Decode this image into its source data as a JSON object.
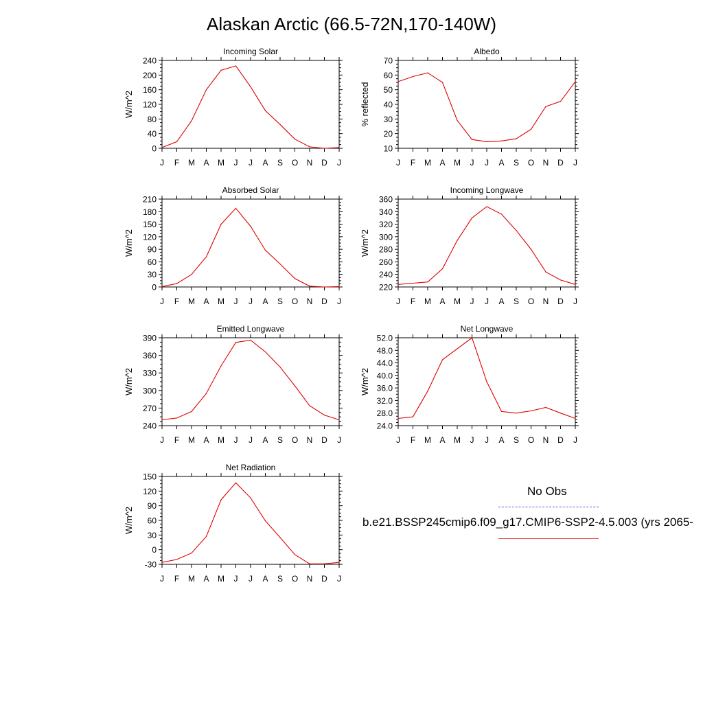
{
  "page_title": "Alaskan Arctic (66.5-72N,170-140W)",
  "legend": {
    "obs_label": "No Obs",
    "model_label": "b.e21.BSSP245cmip6.f09_g17.CMIP6-SSP2-4.5.003 (yrs 2065-",
    "obs_color": "#4a5bd8",
    "model_color": "#e00000"
  },
  "chart_data": [
    {
      "type": "line",
      "title": "Incoming Solar",
      "ylabel": "W/m^2",
      "categories": [
        "J",
        "F",
        "M",
        "A",
        "M",
        "J",
        "J",
        "A",
        "S",
        "O",
        "N",
        "D",
        "J"
      ],
      "ylim": [
        0,
        240
      ],
      "yticks": [
        "0",
        "40",
        "80",
        "120",
        "160",
        "200",
        "240"
      ],
      "series": [
        {
          "values": [
            2,
            18,
            75,
            160,
            213,
            225,
            168,
            103,
            65,
            25,
            4,
            0,
            2
          ]
        }
      ]
    },
    {
      "type": "line",
      "title": "Albedo",
      "ylabel": "% reflected",
      "categories": [
        "J",
        "F",
        "M",
        "A",
        "M",
        "J",
        "J",
        "A",
        "S",
        "O",
        "N",
        "D",
        "J"
      ],
      "ylim": [
        10,
        70
      ],
      "yticks": [
        "10",
        "20",
        "30",
        "40",
        "50",
        "60",
        "70"
      ],
      "series": [
        {
          "values": [
            55.5,
            59,
            61.5,
            55,
            29,
            16,
            14.5,
            15,
            16.5,
            23,
            38.5,
            42,
            55.5
          ]
        }
      ]
    },
    {
      "type": "line",
      "title": "Absorbed Solar",
      "ylabel": "W/m^2",
      "categories": [
        "J",
        "F",
        "M",
        "A",
        "M",
        "J",
        "J",
        "A",
        "S",
        "O",
        "N",
        "D",
        "J"
      ],
      "ylim": [
        0,
        210
      ],
      "yticks": [
        "0",
        "30",
        "60",
        "90",
        "120",
        "150",
        "180",
        "210"
      ],
      "series": [
        {
          "values": [
            1,
            8,
            30,
            72,
            150,
            188,
            145,
            88,
            55,
            20,
            2,
            0,
            1
          ]
        }
      ]
    },
    {
      "type": "line",
      "title": "Incoming Longwave",
      "ylabel": "W/m^2",
      "categories": [
        "J",
        "F",
        "M",
        "A",
        "M",
        "J",
        "J",
        "A",
        "S",
        "O",
        "N",
        "D",
        "J"
      ],
      "ylim": [
        220,
        360
      ],
      "yticks": [
        "220",
        "240",
        "260",
        "280",
        "300",
        "320",
        "340",
        "360"
      ],
      "series": [
        {
          "values": [
            224,
            226,
            228,
            249,
            294,
            330,
            348,
            336,
            310,
            280,
            244,
            231,
            224
          ]
        }
      ]
    },
    {
      "type": "line",
      "title": "Emitted Longwave",
      "ylabel": "W/m^2",
      "categories": [
        "J",
        "F",
        "M",
        "A",
        "M",
        "J",
        "J",
        "A",
        "S",
        "O",
        "N",
        "D",
        "J"
      ],
      "ylim": [
        240,
        390
      ],
      "yticks": [
        "240",
        "270",
        "300",
        "330",
        "360",
        "390"
      ],
      "series": [
        {
          "values": [
            250,
            253,
            264,
            295,
            342,
            382,
            386,
            366,
            340,
            308,
            274,
            258,
            250
          ]
        }
      ]
    },
    {
      "type": "line",
      "title": "Net Longwave",
      "ylabel": "W/m^2",
      "categories": [
        "J",
        "F",
        "M",
        "A",
        "M",
        "J",
        "J",
        "A",
        "S",
        "O",
        "N",
        "D",
        "J"
      ],
      "ylim": [
        24,
        52
      ],
      "yticks": [
        "24.0",
        "28.0",
        "32.0",
        "36.0",
        "40.0",
        "44.0",
        "48.0",
        "52.0"
      ],
      "series": [
        {
          "values": [
            26.3,
            26.8,
            35,
            45,
            48.5,
            52,
            38,
            28.5,
            28,
            28.7,
            29.8,
            28,
            26.3
          ]
        }
      ]
    },
    {
      "type": "line",
      "title": "Net Radiation",
      "ylabel": "W/m^2",
      "categories": [
        "J",
        "F",
        "M",
        "A",
        "M",
        "J",
        "J",
        "A",
        "S",
        "O",
        "N",
        "D",
        "J"
      ],
      "ylim": [
        -30,
        150
      ],
      "yticks": [
        "-30",
        "0",
        "30",
        "60",
        "90",
        "120",
        "150"
      ],
      "series": [
        {
          "values": [
            -26,
            -20,
            -7,
            27,
            102,
            137,
            106,
            59,
            25,
            -10,
            -29,
            -29,
            -26
          ]
        }
      ]
    }
  ]
}
